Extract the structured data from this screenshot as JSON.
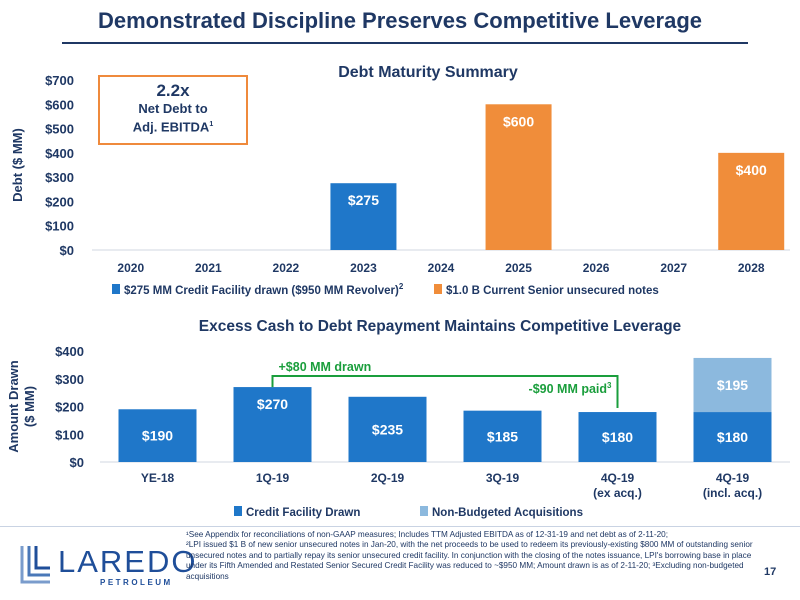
{
  "slide": {
    "title": "Demonstrated Discipline Preserves Competitive Leverage",
    "page_number": "17",
    "footnotes": [
      "¹See Appendix for reconciliations of non-GAAP measures; Includes TTM Adjusted EBITDA as of 12-31-19 and net debt as of 2-11-20;",
      "²LPI issued $1 B of new senior unsecured notes in Jan-20, with the net proceeds to be used to redeem its previously-existing $800 MM of outstanding senior unsecured notes and to partially repay its senior unsecured credit facility. In conjunction with the closing of the notes issuance, LPI's borrowing base in place under its Fifth Amended and Restated Senior Secured Credit Facility was reduced to ~$950 MM; Amount drawn is as of 2-11-20; ³Excluding non-budgeted acquisitions"
    ],
    "logo": {
      "name": "LAREDO",
      "subtitle": "PETROLEUM"
    }
  },
  "callout": {
    "value": "2.2x",
    "line1": "Net Debt to",
    "line2": "Adj. EBITDA",
    "sup": "1"
  },
  "colors": {
    "blue": "#1f77c9",
    "orange": "#f08d3a",
    "light_blue": "#8cb9de",
    "navy": "#1f3864",
    "green": "#1a9e3c"
  },
  "chart_data": [
    {
      "type": "bar",
      "title": "Debt Maturity Summary",
      "ylabel": "Debt ($ MM)",
      "ylim": [
        0,
        700
      ],
      "yticks": [
        "$0",
        "$100",
        "$200",
        "$300",
        "$400",
        "$500",
        "$600",
        "$700"
      ],
      "categories": [
        "2020",
        "2021",
        "2022",
        "2023",
        "2024",
        "2025",
        "2026",
        "2027",
        "2028"
      ],
      "series": [
        {
          "name": "$275 MM Credit Facility drawn ($950 MM Revolver)",
          "sup": "2",
          "color": "#1f77c9",
          "values": [
            0,
            0,
            0,
            275,
            0,
            0,
            0,
            0,
            0
          ]
        },
        {
          "name": "$1.0 B Current Senior unsecured notes",
          "color": "#f08d3a",
          "values": [
            0,
            0,
            0,
            0,
            0,
            600,
            0,
            0,
            400
          ]
        }
      ],
      "data_labels": [
        "",
        "",
        "",
        "$275",
        "",
        "$600",
        "",
        "",
        "$400"
      ]
    },
    {
      "type": "bar",
      "stacked": true,
      "title": "Excess Cash to Debt Repayment Maintains Competitive Leverage",
      "ylabel": "Amount Drawn ($ MM)",
      "ylabel_lines": [
        "Amount Drawn",
        "($ MM)"
      ],
      "ylim": [
        0,
        400
      ],
      "yticks": [
        "$0",
        "$100",
        "$200",
        "$300",
        "$400"
      ],
      "categories": [
        [
          "YE-18"
        ],
        [
          "1Q-19"
        ],
        [
          "2Q-19"
        ],
        [
          "3Q-19"
        ],
        [
          "4Q-19",
          "(ex acq.)"
        ],
        [
          "4Q-19",
          "(incl. acq.)"
        ]
      ],
      "series": [
        {
          "name": "Credit Facility Drawn",
          "color": "#1f77c9",
          "values": [
            190,
            270,
            235,
            185,
            180,
            180
          ],
          "labels": [
            "$190",
            "$270",
            "$235",
            "$185",
            "$180",
            "$180"
          ]
        },
        {
          "name": "Non-Budgeted Acquisitions",
          "color": "#8cb9de",
          "values": [
            0,
            0,
            0,
            0,
            0,
            195
          ],
          "labels": [
            "",
            "",
            "",
            "",
            "",
            "$195"
          ]
        }
      ],
      "annotations": {
        "drawn": "+$80 MM drawn",
        "paid": "-$90 MM paid",
        "paid_sup": "3"
      }
    }
  ]
}
